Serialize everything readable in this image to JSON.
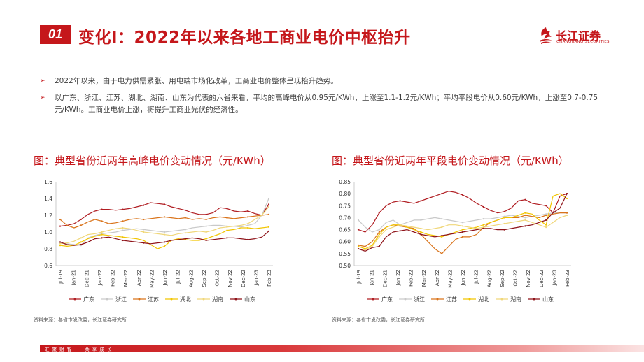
{
  "header": {
    "number": "01",
    "title": "变化Ⅰ：2022年以来各地工商业电价中枢抬升",
    "logo_cn": "长江证券",
    "logo_en": "CHANGJIANG SECURITIES"
  },
  "bullets": [
    "2022年以来，由于电力供需紧张、用电端市场化改革，工商业电价整体呈现抬升趋势。",
    "以广东、浙江、江苏、湖北、湖南、山东为代表的六省来看，平均的高峰电价从0.95元/KWh，上涨至1.1-1.2元/KWh；平均平段电价从0.60元/KWh，上涨至0.7-0.75元/KWh。工商业电价上涨，将提升工商业光伏的经济性。"
  ],
  "footer": {
    "left": "汇 聚 财 智",
    "right": "共 享 成 长"
  },
  "colors": {
    "广东": "#b01d22",
    "浙江": "#c9c9c9",
    "江苏": "#d9731a",
    "湖北": "#f2c500",
    "湖南": "#f0d77a",
    "山东": "#8e1218"
  },
  "chart_data": [
    {
      "type": "line",
      "title": "图：典型省份近两年高峰电价变动情况（元/KWh）",
      "source": "资料来源：各省市发改委，长江证券研究所",
      "ylim": [
        0.6,
        1.6
      ],
      "yticks": [
        0.6,
        0.8,
        1.0,
        1.2,
        1.4,
        1.6
      ],
      "tick_labels": [
        "Jul-19",
        "Jan-21",
        "Dec-21",
        "Jan-22",
        "Feb-22",
        "Mar-22",
        "Apr-22",
        "May-22",
        "Jun-22",
        "Jul-22",
        "Aug-22",
        "Sep-22",
        "Oct-22",
        "Nov-22",
        "Dec-22",
        "Jan-23",
        "Feb-23"
      ],
      "n_points": 31,
      "legend_position": "bottom",
      "series": [
        {
          "name": "广东",
          "values": [
            1.07,
            1.08,
            1.1,
            1.15,
            1.21,
            1.25,
            1.27,
            1.27,
            1.26,
            1.27,
            1.28,
            1.3,
            1.32,
            1.35,
            1.34,
            1.33,
            1.3,
            1.28,
            1.26,
            1.23,
            1.21,
            1.21,
            1.23,
            1.29,
            1.28,
            1.25,
            1.24,
            1.25,
            1.22,
            1.2,
            1.33
          ]
        },
        {
          "name": "浙江",
          "values": [
            0.87,
            0.86,
            0.85,
            0.84,
            0.93,
            0.96,
            0.98,
            0.99,
            1.0,
            1.02,
            1.03,
            1.04,
            1.03,
            1.02,
            1.01,
            1.0,
            1.01,
            1.02,
            1.03,
            1.05,
            1.06,
            1.07,
            1.08,
            1.08,
            1.07,
            1.07,
            1.06,
            1.08,
            1.1,
            1.2,
            1.4
          ]
        },
        {
          "name": "江苏",
          "values": [
            1.15,
            1.08,
            1.05,
            1.08,
            1.12,
            1.15,
            1.13,
            1.1,
            1.11,
            1.13,
            1.15,
            1.16,
            1.15,
            1.16,
            1.17,
            1.18,
            1.17,
            1.16,
            1.17,
            1.15,
            1.16,
            1.15,
            1.17,
            1.18,
            1.17,
            1.16,
            1.17,
            1.18,
            1.19,
            1.2,
            1.21
          ]
        },
        {
          "name": "湖北",
          "values": [
            0.84,
            0.83,
            0.84,
            0.88,
            0.92,
            0.95,
            0.97,
            0.96,
            0.95,
            0.94,
            0.93,
            0.92,
            0.9,
            0.85,
            0.8,
            0.83,
            0.9,
            0.92,
            0.91,
            0.9,
            0.9,
            0.92,
            0.95,
            0.98,
            1.02,
            1.03,
            1.05,
            1.05,
            1.04,
            1.05,
            1.06
          ]
        },
        {
          "name": "湖南",
          "values": [
            0.86,
            0.87,
            0.89,
            0.93,
            0.97,
            0.98,
            1.0,
            1.02,
            1.04,
            1.05,
            1.04,
            1.02,
            1.0,
            0.99,
            0.98,
            0.97,
            0.96,
            0.98,
            0.99,
            1.0,
            1.01,
            1.0,
            1.02,
            1.05,
            1.06,
            1.07,
            1.08,
            1.1,
            1.15,
            1.2,
            1.3
          ]
        },
        {
          "name": "山东",
          "values": [
            0.88,
            0.85,
            0.84,
            0.85,
            0.88,
            0.92,
            0.93,
            0.94,
            0.92,
            0.9,
            0.89,
            0.88,
            0.87,
            0.86,
            0.87,
            0.88,
            0.9,
            0.91,
            0.92,
            0.93,
            0.92,
            0.9,
            0.91,
            0.92,
            0.93,
            0.93,
            0.92,
            0.91,
            0.92,
            0.94,
            1.01
          ]
        }
      ]
    },
    {
      "type": "line",
      "title": "图：典型省份近两年平段电价变动情况（元/KWh）",
      "source": "资料来源：各省市发改委，长江证券研究所",
      "ylim": [
        0.5,
        0.85
      ],
      "yticks": [
        0.5,
        0.55,
        0.6,
        0.65,
        0.7,
        0.75,
        0.8,
        0.85
      ],
      "tick_labels": [
        "Jul-19",
        "Jan-21",
        "Dec-21",
        "Jan-22",
        "Feb-22",
        "Mar-22",
        "Apr-22",
        "May-22",
        "Jun-22",
        "Jul-22",
        "Aug-22",
        "Sep-22",
        "Oct-22",
        "Nov-22",
        "Dec-22",
        "Jan-23",
        "Feb-23"
      ],
      "n_points": 31,
      "legend_position": "bottom",
      "series": [
        {
          "name": "广东",
          "values": [
            0.65,
            0.64,
            0.67,
            0.72,
            0.75,
            0.765,
            0.77,
            0.765,
            0.76,
            0.77,
            0.78,
            0.79,
            0.8,
            0.81,
            0.805,
            0.795,
            0.78,
            0.76,
            0.745,
            0.73,
            0.72,
            0.725,
            0.74,
            0.77,
            0.775,
            0.76,
            0.755,
            0.75,
            0.72,
            0.79,
            0.8
          ]
        },
        {
          "name": "浙江",
          "values": [
            0.69,
            0.66,
            0.64,
            0.65,
            0.68,
            0.69,
            0.67,
            0.68,
            0.69,
            0.69,
            0.695,
            0.7,
            0.695,
            0.69,
            0.685,
            0.68,
            0.685,
            0.69,
            0.695,
            0.695,
            0.7,
            0.705,
            0.71,
            0.705,
            0.7,
            0.705,
            0.71,
            0.715,
            0.72,
            0.72,
            0.72
          ]
        },
        {
          "name": "江苏",
          "values": [
            0.585,
            0.58,
            0.6,
            0.64,
            0.66,
            0.67,
            0.665,
            0.66,
            0.655,
            0.63,
            0.6,
            0.57,
            0.55,
            0.58,
            0.61,
            0.62,
            0.62,
            0.63,
            0.66,
            0.68,
            0.69,
            0.7,
            0.7,
            0.7,
            0.71,
            0.705,
            0.7,
            0.71,
            0.715,
            0.72,
            0.72
          ]
        },
        {
          "name": "湖北",
          "values": [
            0.58,
            0.57,
            0.585,
            0.63,
            0.66,
            0.67,
            0.67,
            0.66,
            0.65,
            0.64,
            0.63,
            0.625,
            0.62,
            0.63,
            0.64,
            0.65,
            0.655,
            0.66,
            0.67,
            0.68,
            0.69,
            0.7,
            0.7,
            0.71,
            0.72,
            0.715,
            0.69,
            0.67,
            0.79,
            0.8,
            0.78
          ]
        },
        {
          "name": "湖南",
          "values": [
            0.57,
            0.565,
            0.58,
            0.62,
            0.65,
            0.66,
            0.67,
            0.665,
            0.66,
            0.655,
            0.65,
            0.655,
            0.66,
            0.67,
            0.67,
            0.665,
            0.66,
            0.655,
            0.66,
            0.665,
            0.67,
            0.675,
            0.68,
            0.685,
            0.69,
            0.68,
            0.67,
            0.66,
            0.68,
            0.7,
            0.71
          ]
        },
        {
          "name": "山东",
          "values": [
            0.57,
            0.56,
            0.575,
            0.58,
            0.62,
            0.64,
            0.645,
            0.65,
            0.64,
            0.63,
            0.625,
            0.62,
            0.625,
            0.63,
            0.635,
            0.64,
            0.645,
            0.65,
            0.655,
            0.655,
            0.65,
            0.65,
            0.655,
            0.66,
            0.665,
            0.67,
            0.68,
            0.69,
            0.72,
            0.74,
            0.8
          ]
        }
      ]
    }
  ]
}
